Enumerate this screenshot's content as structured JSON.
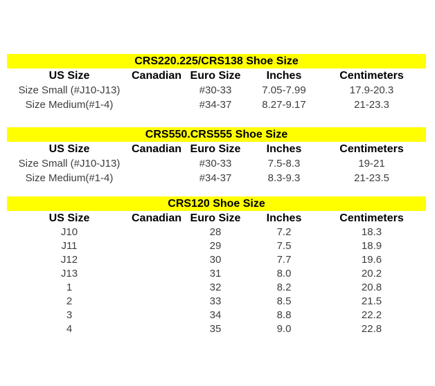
{
  "colors": {
    "page_bg": "#ffffff",
    "title_bar_bg": "#ffff00",
    "title_text": "#000000",
    "header_text": "#000000",
    "cell_text": "#3d3d3d"
  },
  "columns": [
    "US Size",
    "Canadian",
    "Euro Size",
    "Inches",
    "Centimeters"
  ],
  "tables": [
    {
      "title": "CRS220.225/CRS138 Shoe Size",
      "rows": [
        [
          "Size Small (#J10-J13)",
          "",
          "#30-33",
          "7.05-7.99",
          "17.9-20.3"
        ],
        [
          "Size Medium(#1-4)",
          "",
          "#34-37",
          "8.27-9.17",
          "21-23.3"
        ]
      ]
    },
    {
      "title": "CRS550.CRS555 Shoe Size",
      "rows": [
        [
          "Size Small (#J10-J13)",
          "",
          "#30-33",
          "7.5-8.3",
          "19-21"
        ],
        [
          "Size Medium(#1-4)",
          "",
          "#34-37",
          "8.3-9.3",
          "21-23.5"
        ]
      ]
    },
    {
      "title": "CRS120 Shoe Size",
      "rows": [
        [
          "J10",
          "",
          "28",
          "7.2",
          "18.3"
        ],
        [
          "J11",
          "",
          "29",
          "7.5",
          "18.9"
        ],
        [
          "J12",
          "",
          "30",
          "7.7",
          "19.6"
        ],
        [
          "J13",
          "",
          "31",
          "8.0",
          "20.2"
        ],
        [
          "1",
          "",
          "32",
          "8.2",
          "20.8"
        ],
        [
          "2",
          "",
          "33",
          "8.5",
          "21.5"
        ],
        [
          "3",
          "",
          "34",
          "8.8",
          "22.2"
        ],
        [
          "4",
          "",
          "35",
          "9.0",
          "22.8"
        ]
      ]
    }
  ]
}
